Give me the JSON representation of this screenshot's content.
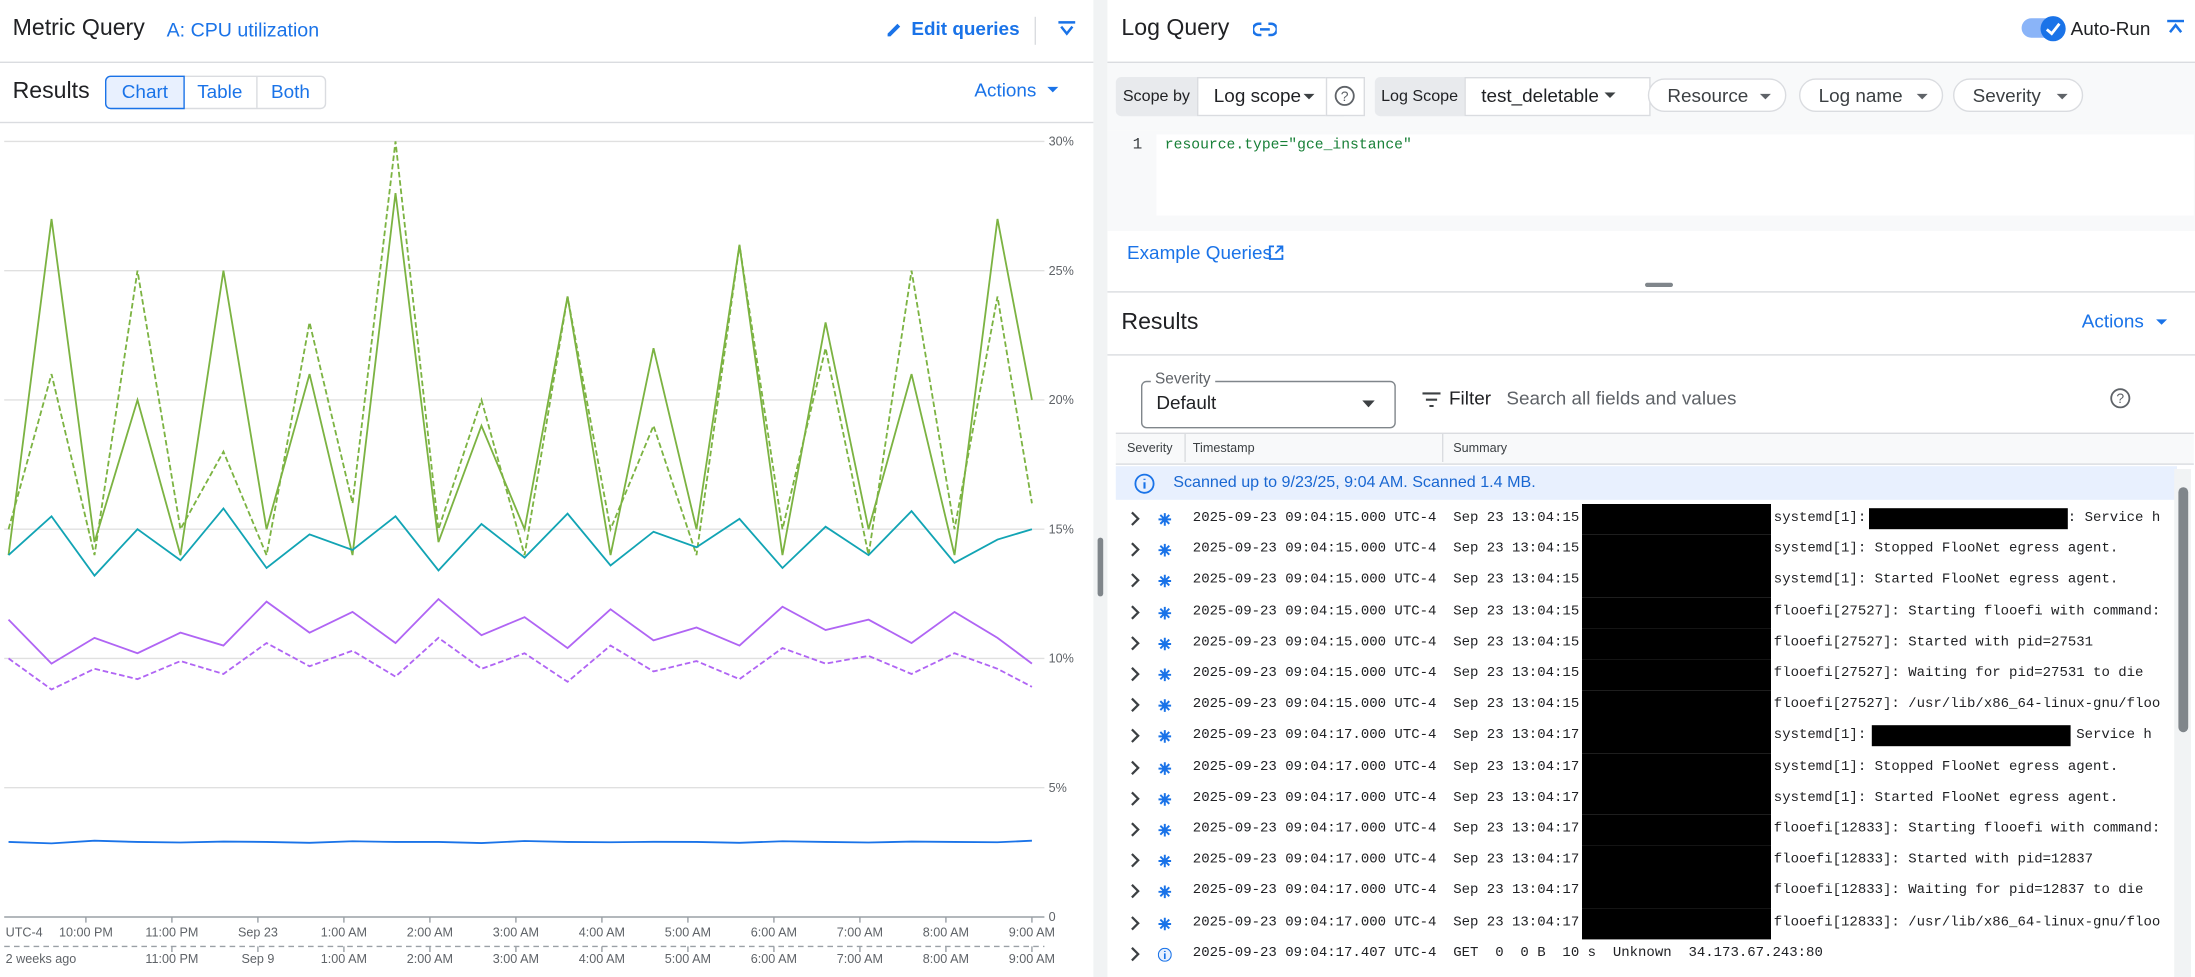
{
  "metric": {
    "title": "Metric Query",
    "query_name": "A: CPU utilization",
    "edit": "Edit queries",
    "results": "Results",
    "tabs": [
      "Chart",
      "Table",
      "Both"
    ],
    "actions": "Actions"
  },
  "chart_data": {
    "type": "line",
    "timezone": "UTC-4",
    "compare_label": "2 weeks ago",
    "x": [
      -2.9,
      -2.4,
      -1.9,
      -1.4,
      -0.9,
      -0.4,
      0.1,
      0.6,
      1.1,
      1.6,
      2.1,
      2.6,
      3.1,
      3.6,
      4.1,
      4.6,
      5.1,
      5.6,
      6.1,
      6.6,
      7.1,
      7.6,
      8.1,
      8.6,
      9.0
    ],
    "xlim": [
      -2.95,
      9.08
    ],
    "xticks": [
      {
        "value": -2,
        "label": "10:00 PM"
      },
      {
        "value": -1,
        "label": "11:00 PM"
      },
      {
        "value": 0,
        "label": "Sep 23"
      },
      {
        "value": 1,
        "label": "1:00 AM"
      },
      {
        "value": 2,
        "label": "2:00 AM"
      },
      {
        "value": 3,
        "label": "3:00 AM"
      },
      {
        "value": 4,
        "label": "4:00 AM"
      },
      {
        "value": 5,
        "label": "5:00 AM"
      },
      {
        "value": 6,
        "label": "6:00 AM"
      },
      {
        "value": 7,
        "label": "7:00 AM"
      },
      {
        "value": 8,
        "label": "8:00 AM"
      },
      {
        "value": 9,
        "label": "9:00 AM"
      }
    ],
    "compare_xticks": [
      {
        "value": -1,
        "label": "11:00 PM"
      },
      {
        "value": 0,
        "label": "Sep 9"
      },
      {
        "value": 1,
        "label": "1:00 AM"
      },
      {
        "value": 2,
        "label": "2:00 AM"
      },
      {
        "value": 3,
        "label": "3:00 AM"
      },
      {
        "value": 4,
        "label": "4:00 AM"
      },
      {
        "value": 5,
        "label": "5:00 AM"
      },
      {
        "value": 6,
        "label": "6:00 AM"
      },
      {
        "value": 7,
        "label": "7:00 AM"
      },
      {
        "value": 8,
        "label": "8:00 AM"
      },
      {
        "value": 9,
        "label": "9:00 AM"
      }
    ],
    "ylim": [
      0,
      30
    ],
    "yticks": [
      0,
      {
        "value": 5,
        "label": "5%"
      },
      {
        "value": 10,
        "label": "10%"
      },
      {
        "value": 15,
        "label": "15%"
      },
      {
        "value": 20,
        "label": "20%"
      },
      {
        "value": 25,
        "label": "25%"
      },
      {
        "value": 30,
        "label": "30%"
      }
    ],
    "grid": true,
    "series": [
      {
        "color": "#b065f4",
        "dashed": true,
        "values": [
          10,
          8.8,
          9.6,
          9.2,
          9.9,
          9.4,
          10.6,
          9.7,
          10.3,
          9.3,
          10.8,
          9.6,
          10.2,
          9.1,
          10.5,
          9.5,
          9.9,
          9.2,
          10.4,
          9.8,
          10.1,
          9.4,
          10.2,
          9.6,
          8.9
        ]
      },
      {
        "color": "#b065f4",
        "dashed": false,
        "values": [
          11.5,
          9.8,
          10.8,
          10.2,
          11,
          10.5,
          12.2,
          11,
          11.8,
          10.6,
          12.3,
          10.9,
          11.6,
          10.4,
          11.9,
          10.7,
          11.2,
          10.5,
          12,
          11.1,
          11.5,
          10.6,
          11.8,
          10.8,
          9.8
        ]
      },
      {
        "color": "#7cb342",
        "dashed": true,
        "values": [
          15,
          21,
          14,
          25,
          15,
          18,
          14,
          23,
          16,
          30,
          15,
          20,
          14,
          24,
          15,
          19,
          14,
          26,
          15,
          22,
          14,
          25,
          15,
          24,
          16
        ]
      },
      {
        "color": "#7cb342",
        "dashed": false,
        "values": [
          14,
          27,
          14.5,
          20,
          14,
          25,
          15,
          21,
          14,
          28,
          14.5,
          19,
          15,
          24,
          14,
          22,
          15,
          26,
          14,
          23,
          15,
          21,
          14,
          27,
          20
        ]
      },
      {
        "color": "#12a4b4",
        "dashed": false,
        "values": [
          14,
          15.5,
          13.2,
          15,
          13.8,
          15.8,
          13.5,
          14.8,
          14.2,
          15.5,
          13.4,
          15.2,
          13.9,
          15.6,
          13.6,
          14.9,
          14.3,
          15.4,
          13.5,
          15.1,
          14,
          15.7,
          13.7,
          14.6,
          15
        ]
      },
      {
        "color": "#1a73e8",
        "dashed": false,
        "values": [
          2.9,
          2.85,
          2.95,
          2.9,
          2.88,
          2.92,
          2.9,
          2.87,
          2.93,
          2.9,
          2.9,
          2.86,
          2.94,
          2.9,
          2.89,
          2.91,
          2.9,
          2.87,
          2.93,
          2.9,
          2.88,
          2.92,
          2.9,
          2.89,
          2.95
        ]
      }
    ]
  },
  "log": {
    "title": "Log Query",
    "auto_run": "Auto-Run",
    "scope_by": "Scope by",
    "scope": "Log scope",
    "log_scope_label": "Log Scope",
    "log_scope_value": "test_deletable",
    "filters": [
      "Resource",
      "Log name",
      "Severity"
    ],
    "line_number": "1",
    "query": "resource.type=\"gce_instance\"",
    "example": "Example Queries",
    "results": "Results",
    "actions": "Actions",
    "severity_label": "Severity",
    "severity_value": "Default",
    "filter": "Filter",
    "search_placeholder": "Search all fields and values",
    "columns": [
      "Severity",
      "Timestamp",
      "Summary"
    ],
    "scan_note": "Scanned up to 9/23/25, 9:04 AM. Scanned 1.4 MB.",
    "rows": [
      {
        "timestamp": "2025-09-23 09:04:15.000 UTC-4",
        "time": "Sep 23 13:04:15",
        "message": "systemd[1]:",
        "tail": ": Service h"
      },
      {
        "timestamp": "2025-09-23 09:04:15.000 UTC-4",
        "time": "Sep 23 13:04:15",
        "message": "systemd[1]: Stopped FlooNet egress agent."
      },
      {
        "timestamp": "2025-09-23 09:04:15.000 UTC-4",
        "time": "Sep 23 13:04:15",
        "message": "systemd[1]: Started FlooNet egress agent."
      },
      {
        "timestamp": "2025-09-23 09:04:15.000 UTC-4",
        "time": "Sep 23 13:04:15",
        "message": "flooefi[27527]: Starting flooefi with command:"
      },
      {
        "timestamp": "2025-09-23 09:04:15.000 UTC-4",
        "time": "Sep 23 13:04:15",
        "message": "flooefi[27527]: Started with pid=27531"
      },
      {
        "timestamp": "2025-09-23 09:04:15.000 UTC-4",
        "time": "Sep 23 13:04:15",
        "message": "flooefi[27527]: Waiting for pid=27531 to die"
      },
      {
        "timestamp": "2025-09-23 09:04:15.000 UTC-4",
        "time": "Sep 23 13:04:15",
        "message": "flooefi[27527]: /usr/lib/x86_64-linux-gnu/floo"
      },
      {
        "timestamp": "2025-09-23 09:04:17.000 UTC-4",
        "time": "Sep 23 13:04:17",
        "message": "systemd[1]:",
        "tail": " Service h"
      },
      {
        "timestamp": "2025-09-23 09:04:17.000 UTC-4",
        "time": "Sep 23 13:04:17",
        "message": "systemd[1]: Stopped FlooNet egress agent."
      },
      {
        "timestamp": "2025-09-23 09:04:17.000 UTC-4",
        "time": "Sep 23 13:04:17",
        "message": "systemd[1]: Started FlooNet egress agent."
      },
      {
        "timestamp": "2025-09-23 09:04:17.000 UTC-4",
        "time": "Sep 23 13:04:17",
        "message": "flooefi[12833]: Starting flooefi with command:"
      },
      {
        "timestamp": "2025-09-23 09:04:17.000 UTC-4",
        "time": "Sep 23 13:04:17",
        "message": "flooefi[12833]: Started with pid=12837"
      },
      {
        "timestamp": "2025-09-23 09:04:17.000 UTC-4",
        "time": "Sep 23 13:04:17",
        "message": "flooefi[12833]: Waiting for pid=12837 to die"
      },
      {
        "timestamp": "2025-09-23 09:04:17.000 UTC-4",
        "time": "Sep 23 13:04:17",
        "message": "flooefi[12833]: /usr/lib/x86_64-linux-gnu/floo"
      },
      {
        "timestamp": "2025-09-23 09:04:17.407 UTC-4",
        "message": "GET  0  0 B  10 s  Unknown  34.173.67.243:80"
      }
    ]
  }
}
